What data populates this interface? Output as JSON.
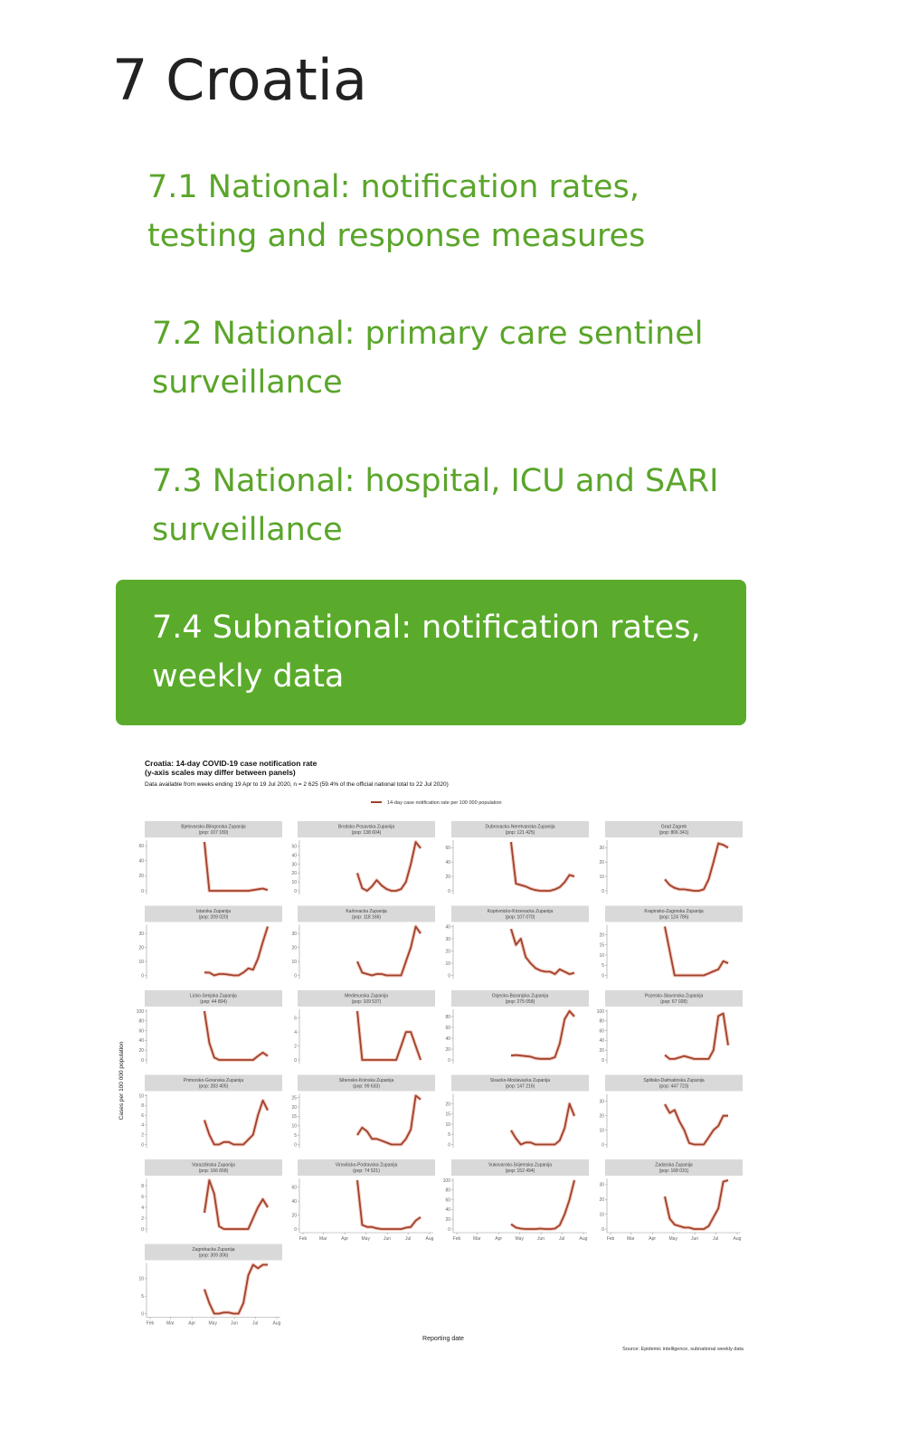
{
  "heading": "7 Croatia",
  "toc": [
    {
      "label": "7.1 National: notification rates, testing and response measures"
    },
    {
      "label": "7.2 National: primary care sentinel surveillance"
    },
    {
      "label": "7.3 National: hospital, ICU and SARI surveillance"
    },
    {
      "label": "7.4 Subnational: notification rates, weekly data",
      "active": true
    }
  ],
  "colors": {
    "accent": "#5aab2b",
    "line": "#a0412d",
    "strip": "#d9d9d9"
  },
  "chart_data": {
    "type": "line",
    "title": "Croatia: 14-day COVID-19 case notification rate",
    "subtitle_line2": "(y-axis scales may differ between panels)",
    "caption": "Data available from weeks ending 19 Apr to 19 Jul 2020, n = 2 625 (59.4% of the official national total to 22 Jul 2020)",
    "legend": "14-day case notification rate per 100 000 population",
    "legend_position": "top",
    "xlabel": "Reporting date",
    "ylabel": "Cases per 100 000 population",
    "source": "Source: Epidemic intelligence, subnational weekly data",
    "x_ticks": [
      "Feb",
      "Mar",
      "Apr",
      "May",
      "Jun",
      "Jul",
      "Aug"
    ],
    "x": [
      "2020-04-19",
      "2020-04-26",
      "2020-05-03",
      "2020-05-10",
      "2020-05-17",
      "2020-05-24",
      "2020-05-31",
      "2020-06-07",
      "2020-06-14",
      "2020-06-21",
      "2020-06-28",
      "2020-07-05",
      "2020-07-12",
      "2020-07-19"
    ],
    "panels": [
      {
        "name": "Bjelovarsko-Bilogorska Zupanija",
        "pop": "(pop: 107 180)",
        "ylim": [
          0,
          65
        ],
        "yticks": [
          0,
          20,
          40,
          60
        ],
        "values": [
          65,
          0,
          0,
          0,
          0,
          0,
          0,
          0,
          0,
          0,
          1,
          2,
          3,
          1
        ]
      },
      {
        "name": "Brodsko-Posavska Zupanija",
        "pop": "(pop: 138 604)",
        "ylim": [
          0,
          55
        ],
        "yticks": [
          0,
          10,
          20,
          30,
          40,
          50
        ],
        "values": [
          20,
          3,
          0,
          5,
          12,
          6,
          2,
          0,
          0,
          2,
          10,
          30,
          55,
          48
        ]
      },
      {
        "name": "Dubrovacko-Neretvanska Zupanija",
        "pop": "(pop: 121 425)",
        "ylim": [
          0,
          68
        ],
        "yticks": [
          0,
          20,
          40,
          60
        ],
        "values": [
          68,
          10,
          8,
          6,
          3,
          1,
          0,
          0,
          0,
          2,
          5,
          12,
          22,
          20
        ]
      },
      {
        "name": "Grad Zagreb",
        "pop": "(pop: 806 341)",
        "ylim": [
          0,
          34
        ],
        "yticks": [
          0,
          10,
          20,
          30
        ],
        "values": [
          8,
          4,
          2,
          1,
          1,
          0.5,
          0,
          0,
          1,
          8,
          20,
          33,
          32,
          30
        ]
      },
      {
        "name": "Istarska Zupanija",
        "pop": "(pop: 209 020)",
        "ylim": [
          0,
          35
        ],
        "yticks": [
          0,
          10,
          20,
          30
        ],
        "values": [
          2,
          2,
          0,
          1,
          1,
          0.5,
          0,
          0,
          2,
          5,
          4,
          12,
          24,
          35
        ]
      },
      {
        "name": "Karlovacka Zupanija",
        "pop": "(pop: 118 166)",
        "ylim": [
          0,
          35
        ],
        "yticks": [
          0,
          10,
          20,
          30
        ],
        "values": [
          10,
          2,
          1,
          0,
          1,
          1,
          0,
          0,
          0,
          0,
          10,
          20,
          35,
          30
        ]
      },
      {
        "name": "Koprivnicko-Krizevacka Zupanija",
        "pop": "(pop: 107 070)",
        "ylim": [
          0,
          40
        ],
        "yticks": [
          0,
          10,
          20,
          30,
          40
        ],
        "values": [
          38,
          25,
          30,
          15,
          10,
          6,
          4,
          3,
          3,
          1,
          5,
          3,
          1,
          2
        ]
      },
      {
        "name": "Krapinsko-Zagorska Zupanija",
        "pop": "(pop: 124 786)",
        "ylim": [
          0,
          24
        ],
        "yticks": [
          0,
          5,
          10,
          15,
          20
        ],
        "values": [
          24,
          12,
          0,
          0,
          0,
          0,
          0,
          0,
          0,
          1,
          2,
          3,
          7,
          6
        ]
      },
      {
        "name": "Licko-Senjska Zupanija",
        "pop": "(pop: 44 804)",
        "ylim": [
          0,
          100
        ],
        "yticks": [
          0,
          20,
          40,
          60,
          80,
          100
        ],
        "values": [
          100,
          35,
          5,
          0,
          0,
          0,
          0,
          0,
          0,
          0,
          0,
          8,
          15,
          8
        ]
      },
      {
        "name": "Medimurska Zupanija",
        "pop": "(pop: 109 537)",
        "ylim": [
          0,
          7
        ],
        "yticks": [
          0,
          2,
          4,
          6
        ],
        "values": [
          7,
          0,
          0,
          0,
          0,
          0,
          0,
          0,
          0,
          2,
          4,
          4,
          2,
          0
        ]
      },
      {
        "name": "Osjecko-Baranjska Zupanija",
        "pop": "(pop: 275 058)",
        "ylim": [
          0,
          90
        ],
        "yticks": [
          0,
          20,
          40,
          60,
          80
        ],
        "values": [
          8,
          9,
          8,
          7,
          6,
          3,
          2,
          2,
          2,
          5,
          30,
          75,
          90,
          80
        ]
      },
      {
        "name": "Pozesko-Slavonska Zupanija",
        "pop": "(pop: 67 028)",
        "ylim": [
          0,
          100
        ],
        "yticks": [
          0,
          20,
          40,
          60,
          80,
          100
        ],
        "values": [
          10,
          2,
          2,
          5,
          8,
          5,
          2,
          2,
          2,
          2,
          20,
          90,
          95,
          30
        ]
      },
      {
        "name": "Primorsko-Goranska Zupanija",
        "pop": "(pop: 283 405)",
        "ylim": [
          0,
          10
        ],
        "yticks": [
          0,
          2,
          4,
          6,
          8,
          10
        ],
        "values": [
          5,
          2,
          0,
          0,
          0.5,
          0.5,
          0,
          0,
          0,
          1,
          2,
          6,
          9,
          7
        ]
      },
      {
        "name": "Sibensko-Kninska Zupanija",
        "pop": "(pop: 99 633)",
        "ylim": [
          0,
          26
        ],
        "yticks": [
          0,
          5,
          10,
          15,
          20,
          25
        ],
        "values": [
          5,
          9,
          7,
          3,
          3,
          2,
          1,
          0,
          0,
          0,
          3,
          8,
          26,
          24
        ]
      },
      {
        "name": "Sisacko-Moslavacka Zupanija",
        "pop": "(pop: 147 216)",
        "ylim": [
          0,
          24
        ],
        "yticks": [
          0,
          5,
          10,
          15,
          20
        ],
        "values": [
          7,
          3,
          0,
          1,
          1,
          0,
          0,
          0,
          0,
          0,
          2,
          8,
          20,
          14
        ]
      },
      {
        "name": "Splitsko-Dalmatinska Zupanija",
        "pop": "(pop: 447 723)",
        "ylim": [
          0,
          34
        ],
        "yticks": [
          0,
          10,
          20,
          30
        ],
        "values": [
          28,
          22,
          24,
          16,
          10,
          1,
          0,
          0,
          0,
          5,
          10,
          13,
          20,
          20
        ]
      },
      {
        "name": "Varazdinska Zupanija",
        "pop": "(pop: 166 658)",
        "ylim": [
          0,
          9
        ],
        "yticks": [
          0,
          2,
          4,
          6,
          8
        ],
        "values": [
          3,
          9,
          6.5,
          0.5,
          0,
          0,
          0,
          0,
          0,
          0,
          2,
          4,
          5.5,
          4
        ]
      },
      {
        "name": "Viroviticko-Podravska Zupanija",
        "pop": "(pop: 74 521)",
        "ylim": [
          0,
          70
        ],
        "yticks": [
          0,
          20,
          40,
          60
        ],
        "values": [
          70,
          6,
          3,
          3,
          1,
          0,
          0,
          0,
          0,
          0,
          2,
          3,
          12,
          17
        ]
      },
      {
        "name": "Vukovarsko-Srijemska Zupanija",
        "pop": "(pop: 152 494)",
        "ylim": [
          0,
          100
        ],
        "yticks": [
          0,
          20,
          40,
          60,
          80,
          100
        ],
        "values": [
          10,
          3,
          1,
          0,
          0,
          0,
          1,
          0,
          0,
          1,
          8,
          30,
          60,
          100
        ]
      },
      {
        "name": "Zadarska Zupanija",
        "pop": "(pop: 168 031)",
        "ylim": [
          0,
          33
        ],
        "yticks": [
          0,
          10,
          20,
          30
        ],
        "values": [
          22,
          7,
          3,
          2,
          1,
          1,
          0,
          0,
          0,
          2,
          8,
          14,
          32,
          33
        ]
      },
      {
        "name": "Zagrebacka Zupanija",
        "pop": "(pop: 309 306)",
        "ylim": [
          0,
          14
        ],
        "yticks": [
          0,
          5,
          10
        ],
        "values": [
          7,
          3,
          0,
          0,
          0.3,
          0.3,
          0,
          0,
          3,
          11,
          14,
          13,
          14,
          14
        ]
      }
    ]
  }
}
